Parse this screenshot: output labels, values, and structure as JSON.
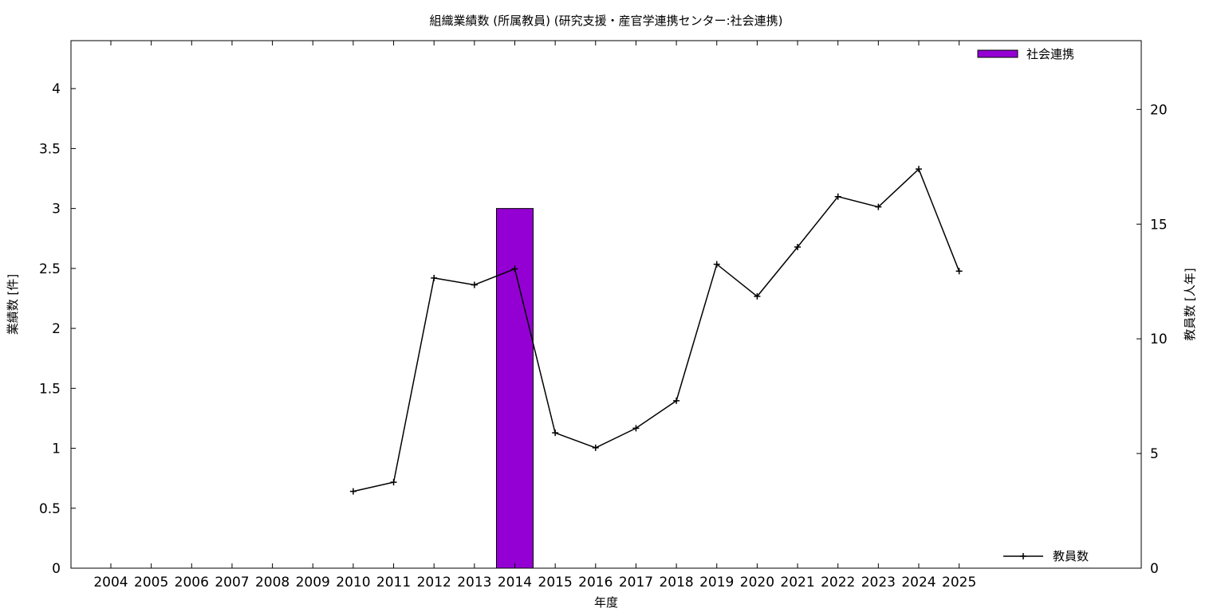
{
  "chart_data": {
    "type": "bar+line",
    "title": "組織業績数 (所属教員) (研究支援・産官学連携センター:社会連携)",
    "xlabel": "年度",
    "ylabel_left": "業績数 [件]",
    "ylabel_right": "教員数 [人年]",
    "categories": [
      "2004",
      "2005",
      "2006",
      "2007",
      "2008",
      "2009",
      "2010",
      "2011",
      "2012",
      "2013",
      "2014",
      "2015",
      "2016",
      "2017",
      "2018",
      "2019",
      "2020",
      "2021",
      "2022",
      "2023",
      "2024",
      "2025"
    ],
    "ylim_left": [
      0,
      4.4
    ],
    "yticks_left": [
      "0",
      "0.5",
      "1",
      "1.5",
      "2",
      "2.5",
      "3",
      "3.5",
      "4"
    ],
    "ylim_right": [
      0,
      23
    ],
    "yticks_right": [
      "0",
      "5",
      "10",
      "15",
      "20"
    ],
    "grid": false,
    "legend_bar_position": "top-right",
    "legend_line_position": "bottom-right",
    "bar_series": {
      "name": "社会連携",
      "color": "#9400d3",
      "values": [
        0,
        0,
        0,
        0,
        0,
        0,
        0,
        0,
        0,
        0,
        3,
        0,
        0,
        0,
        0,
        0,
        0,
        0,
        0,
        0,
        0,
        0
      ]
    },
    "line_series": {
      "name": "教員数",
      "color": "#000000",
      "x": [
        "2010",
        "2011",
        "2012",
        "2013",
        "2014",
        "2015",
        "2016",
        "2017",
        "2018",
        "2019",
        "2020",
        "2021",
        "2022",
        "2023",
        "2024",
        "2025"
      ],
      "values": [
        3.35,
        3.75,
        12.65,
        12.35,
        13.05,
        5.9,
        5.25,
        6.1,
        7.3,
        13.25,
        11.85,
        14.0,
        16.2,
        15.75,
        17.4,
        12.95
      ]
    }
  }
}
